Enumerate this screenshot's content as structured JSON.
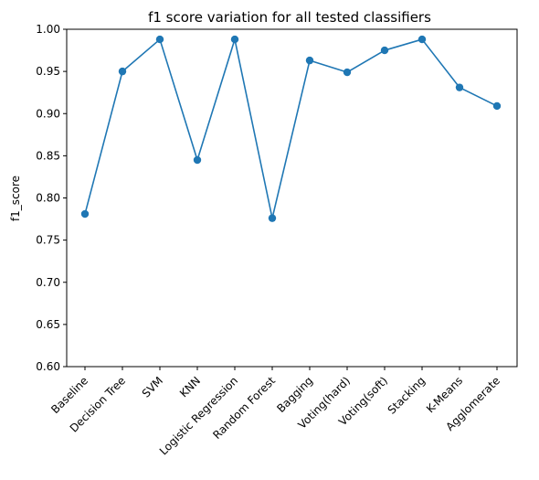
{
  "chart_data": {
    "type": "line",
    "title": "f1 score variation for all tested classifiers",
    "xlabel": "",
    "ylabel": "f1_score",
    "categories": [
      "Baseline",
      "Decision Tree",
      "SVM",
      "KNN",
      "Logistic Regression",
      "Random Forest",
      "Bagging",
      "Voting(hard)",
      "Voting(soft)",
      "Stacking",
      "K-Means",
      "Agglomerate"
    ],
    "series": [
      {
        "values": [
          0.781,
          0.95,
          0.988,
          0.845,
          0.988,
          0.776,
          0.963,
          0.949,
          0.975,
          0.988,
          0.931,
          0.909
        ]
      }
    ],
    "ylim": [
      0.6,
      1.0
    ],
    "yticks": [
      "0.60",
      "0.65",
      "0.70",
      "0.75",
      "0.80",
      "0.85",
      "0.90",
      "0.95",
      "1.00"
    ],
    "grid": false,
    "legend": "none",
    "colors": {
      "line": "#1f77b4",
      "marker": "#1f77b4",
      "axes": "#000000",
      "background": "#ffffff"
    }
  }
}
